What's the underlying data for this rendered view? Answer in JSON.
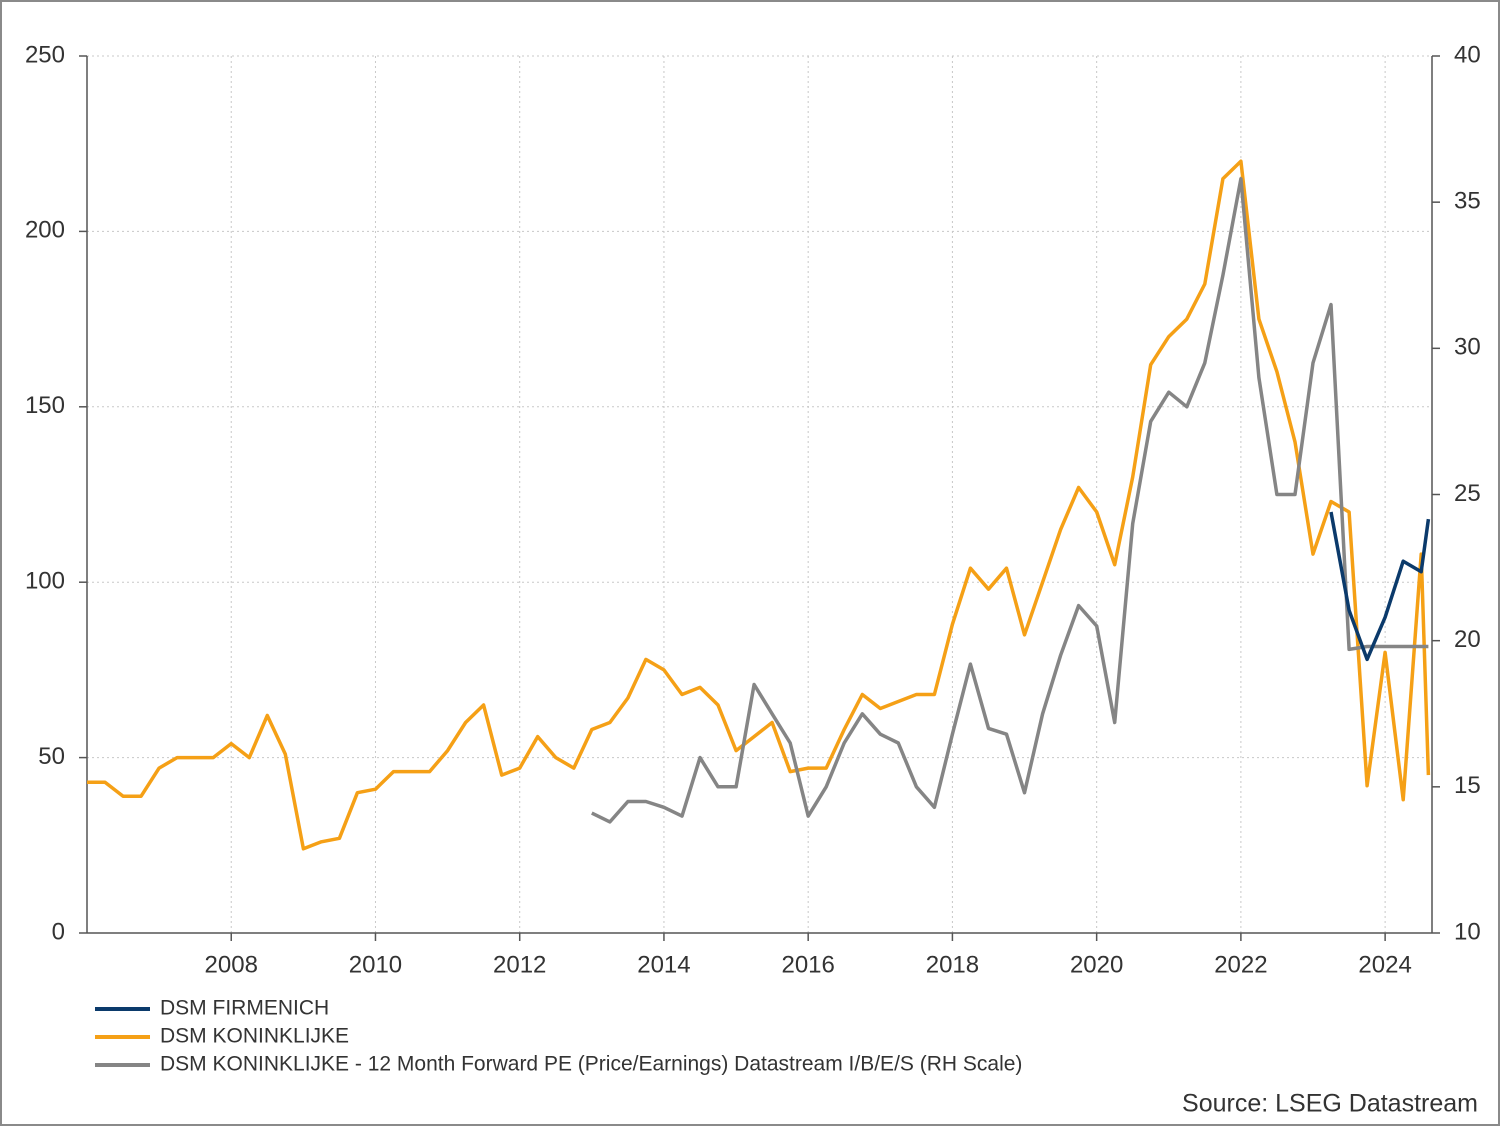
{
  "chart_data": {
    "type": "line",
    "source": "Source: LSEG Datastream",
    "x": [
      2006,
      2006.25,
      2006.5,
      2006.75,
      2007,
      2007.25,
      2007.5,
      2007.75,
      2008,
      2008.25,
      2008.5,
      2008.75,
      2009,
      2009.25,
      2009.5,
      2009.75,
      2010,
      2010.25,
      2010.5,
      2010.75,
      2011,
      2011.25,
      2011.5,
      2011.75,
      2012,
      2012.25,
      2012.5,
      2012.75,
      2013,
      2013.25,
      2013.5,
      2013.75,
      2014,
      2014.25,
      2014.5,
      2014.75,
      2015,
      2015.25,
      2015.5,
      2015.75,
      2016,
      2016.25,
      2016.5,
      2016.75,
      2017,
      2017.25,
      2017.5,
      2017.75,
      2018,
      2018.25,
      2018.5,
      2018.75,
      2019,
      2019.25,
      2019.5,
      2019.75,
      2020,
      2020.25,
      2020.5,
      2020.75,
      2021,
      2021.25,
      2021.5,
      2021.75,
      2022,
      2022.25,
      2022.5,
      2022.75,
      2023,
      2023.25,
      2023.5,
      2023.75,
      2024,
      2024.25,
      2024.5,
      2024.6
    ],
    "xlim": [
      2006,
      2024.65
    ],
    "xticks": [
      2008,
      2010,
      2012,
      2014,
      2016,
      2018,
      2020,
      2022,
      2024
    ],
    "ylim": [
      0,
      250
    ],
    "yticks": [
      0,
      50,
      100,
      150,
      200,
      250
    ],
    "y2lim": [
      10,
      40
    ],
    "y2ticks": [
      10,
      15,
      20,
      25,
      30,
      35,
      40
    ],
    "grid": true,
    "series": [
      {
        "name": "DSM FIRMENICH",
        "color": "#0b3a6b",
        "values": [
          null,
          null,
          null,
          null,
          null,
          null,
          null,
          null,
          null,
          null,
          null,
          null,
          null,
          null,
          null,
          null,
          null,
          null,
          null,
          null,
          null,
          null,
          null,
          null,
          null,
          null,
          null,
          null,
          null,
          null,
          null,
          null,
          null,
          null,
          null,
          null,
          null,
          null,
          null,
          null,
          null,
          null,
          null,
          null,
          null,
          null,
          null,
          null,
          null,
          null,
          null,
          null,
          null,
          null,
          null,
          null,
          null,
          null,
          null,
          null,
          null,
          null,
          null,
          null,
          null,
          null,
          null,
          null,
          null,
          120,
          92,
          78,
          90,
          106,
          103,
          118
        ]
      },
      {
        "name": "DSM KONINKLIJKE",
        "color": "#f5a016",
        "values": [
          43,
          43,
          39,
          39,
          47,
          50,
          50,
          50,
          54,
          50,
          62,
          51,
          24,
          26,
          27,
          40,
          41,
          46,
          46,
          46,
          52,
          60,
          65,
          45,
          47,
          56,
          50,
          47,
          58,
          60,
          67,
          78,
          75,
          68,
          70,
          65,
          52,
          56,
          60,
          46,
          47,
          47,
          58,
          68,
          64,
          66,
          68,
          68,
          88,
          104,
          98,
          104,
          85,
          100,
          115,
          127,
          120,
          105,
          130,
          162,
          170,
          175,
          185,
          215,
          220,
          175,
          160,
          140,
          108,
          123,
          120,
          42,
          80,
          38,
          108,
          45
        ]
      },
      {
        "name": "DSM KONINKLIJKE - 12 Month Forward PE (Price/Earnings) Datastream I/B/E/S (RH Scale)",
        "color": "#858585",
        "axis": "y2",
        "values": [
          null,
          null,
          null,
          null,
          null,
          null,
          null,
          null,
          null,
          null,
          null,
          null,
          null,
          null,
          null,
          null,
          null,
          null,
          null,
          null,
          null,
          null,
          null,
          null,
          null,
          null,
          null,
          null,
          14.1,
          13.8,
          14.5,
          14.5,
          14.3,
          14.0,
          16.0,
          15.0,
          15.0,
          18.5,
          17.5,
          16.5,
          14.0,
          15.0,
          16.5,
          17.5,
          16.8,
          16.5,
          15.0,
          14.3,
          16.8,
          19.2,
          17.0,
          16.8,
          14.8,
          17.5,
          19.5,
          21.2,
          20.5,
          17.2,
          24.0,
          27.5,
          28.5,
          28.0,
          29.5,
          32.5,
          35.8,
          29.0,
          25.0,
          25.0,
          29.5,
          31.5,
          19.7,
          19.8,
          19.8,
          19.8,
          19.8,
          19.8
        ]
      }
    ]
  }
}
